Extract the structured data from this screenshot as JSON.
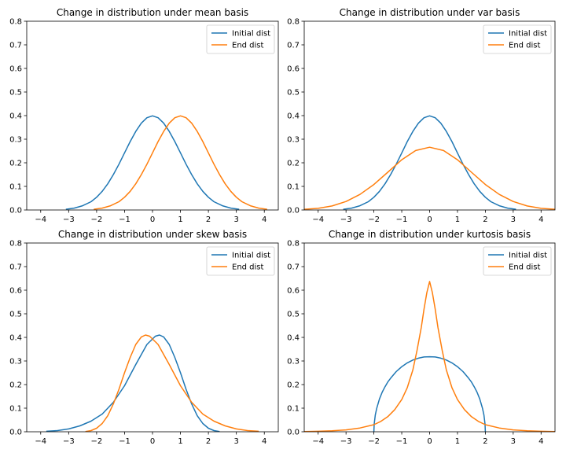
{
  "colors": {
    "initial": "#1f77b4",
    "end": "#ff7f0e"
  },
  "chart_data": [
    {
      "type": "line",
      "title": "Change in distribution under mean basis",
      "xlim": [
        -4.5,
        4.5
      ],
      "ylim": [
        0,
        0.8
      ],
      "xticks": [
        -4,
        -3,
        -2,
        -1,
        0,
        1,
        2,
        3,
        4
      ],
      "xtick_labels": [
        "−4",
        "−3",
        "−2",
        "−1",
        "0",
        "1",
        "2",
        "3",
        "4"
      ],
      "yticks": [
        0,
        0.1,
        0.2,
        0.3,
        0.4,
        0.5,
        0.6,
        0.7,
        0.8
      ],
      "ytick_labels": [
        "0.0",
        "0.1",
        "0.2",
        "0.3",
        "0.4",
        "0.5",
        "0.6",
        "0.7",
        "0.8"
      ],
      "legend": "top-right",
      "series": [
        {
          "name": "Initial dist",
          "x": [
            -3.1,
            -2.8,
            -2.5,
            -2.2,
            -2,
            -1.8,
            -1.6,
            -1.4,
            -1.2,
            -1,
            -0.8,
            -0.6,
            -0.4,
            -0.2,
            0,
            0.2,
            0.4,
            0.6,
            0.8,
            1,
            1.2,
            1.4,
            1.6,
            1.8,
            2,
            2.2,
            2.5,
            2.8,
            3.1
          ],
          "y": [
            0.003,
            0.008,
            0.018,
            0.035,
            0.054,
            0.079,
            0.111,
            0.15,
            0.194,
            0.242,
            0.29,
            0.333,
            0.368,
            0.391,
            0.399,
            0.391,
            0.368,
            0.333,
            0.29,
            0.242,
            0.194,
            0.15,
            0.111,
            0.079,
            0.054,
            0.035,
            0.018,
            0.008,
            0.003
          ]
        },
        {
          "name": "End dist",
          "x": [
            -2.1,
            -1.8,
            -1.5,
            -1.2,
            -1,
            -0.8,
            -0.6,
            -0.4,
            -0.2,
            0,
            0.2,
            0.4,
            0.6,
            0.8,
            1,
            1.2,
            1.4,
            1.6,
            1.8,
            2,
            2.2,
            2.4,
            2.6,
            2.8,
            3,
            3.2,
            3.5,
            3.8,
            4.1
          ],
          "y": [
            0.003,
            0.008,
            0.018,
            0.035,
            0.054,
            0.079,
            0.111,
            0.15,
            0.194,
            0.242,
            0.29,
            0.333,
            0.368,
            0.391,
            0.399,
            0.391,
            0.368,
            0.333,
            0.29,
            0.242,
            0.194,
            0.15,
            0.111,
            0.079,
            0.054,
            0.035,
            0.018,
            0.008,
            0.003
          ]
        }
      ]
    },
    {
      "type": "line",
      "title": "Change in distribution under var basis",
      "xlim": [
        -4.5,
        4.5
      ],
      "ylim": [
        0,
        0.8
      ],
      "xticks": [
        -4,
        -3,
        -2,
        -1,
        0,
        1,
        2,
        3,
        4
      ],
      "xtick_labels": [
        "−4",
        "−3",
        "−2",
        "−1",
        "0",
        "1",
        "2",
        "3",
        "4"
      ],
      "yticks": [
        0,
        0.1,
        0.2,
        0.3,
        0.4,
        0.5,
        0.6,
        0.7,
        0.8
      ],
      "ytick_labels": [
        "0.0",
        "0.1",
        "0.2",
        "0.3",
        "0.4",
        "0.5",
        "0.6",
        "0.7",
        "0.8"
      ],
      "legend": "top-right",
      "series": [
        {
          "name": "Initial dist",
          "x": [
            -3.1,
            -2.8,
            -2.5,
            -2.2,
            -2,
            -1.8,
            -1.6,
            -1.4,
            -1.2,
            -1,
            -0.8,
            -0.6,
            -0.4,
            -0.2,
            0,
            0.2,
            0.4,
            0.6,
            0.8,
            1,
            1.2,
            1.4,
            1.6,
            1.8,
            2,
            2.2,
            2.5,
            2.8,
            3.1
          ],
          "y": [
            0.003,
            0.008,
            0.018,
            0.035,
            0.054,
            0.079,
            0.111,
            0.15,
            0.194,
            0.242,
            0.29,
            0.333,
            0.368,
            0.391,
            0.399,
            0.391,
            0.368,
            0.333,
            0.29,
            0.242,
            0.194,
            0.15,
            0.111,
            0.079,
            0.054,
            0.035,
            0.018,
            0.008,
            0.003
          ]
        },
        {
          "name": "End dist",
          "x": [
            -4.5,
            -4,
            -3.5,
            -3,
            -2.5,
            -2,
            -1.5,
            -1,
            -0.5,
            0,
            0.5,
            1,
            1.5,
            2,
            2.5,
            3,
            3.5,
            4,
            4.5
          ],
          "y": [
            0.003,
            0.007,
            0.017,
            0.036,
            0.066,
            0.108,
            0.16,
            0.213,
            0.252,
            0.266,
            0.252,
            0.213,
            0.16,
            0.108,
            0.066,
            0.036,
            0.017,
            0.007,
            0.003
          ]
        }
      ]
    },
    {
      "type": "line",
      "title": "Change in distribution under skew basis",
      "xlim": [
        -4.5,
        4.5
      ],
      "ylim": [
        0,
        0.8
      ],
      "xticks": [
        -4,
        -3,
        -2,
        -1,
        0,
        1,
        2,
        3,
        4
      ],
      "xtick_labels": [
        "−4",
        "−3",
        "−2",
        "−1",
        "0",
        "1",
        "2",
        "3",
        "4"
      ],
      "yticks": [
        0,
        0.1,
        0.2,
        0.3,
        0.4,
        0.5,
        0.6,
        0.7,
        0.8
      ],
      "ytick_labels": [
        "0.0",
        "0.1",
        "0.2",
        "0.3",
        "0.4",
        "0.5",
        "0.6",
        "0.7",
        "0.8"
      ],
      "legend": "top-right",
      "series": [
        {
          "name": "Initial dist",
          "x": [
            -3.8,
            -3.4,
            -3,
            -2.6,
            -2.2,
            -1.8,
            -1.4,
            -1,
            -0.6,
            -0.2,
            0.1,
            0.25,
            0.4,
            0.6,
            0.8,
            1,
            1.2,
            1.4,
            1.6,
            1.8,
            2,
            2.2,
            2.4
          ],
          "y": [
            0.002,
            0.005,
            0.012,
            0.025,
            0.045,
            0.075,
            0.125,
            0.195,
            0.285,
            0.37,
            0.405,
            0.41,
            0.402,
            0.37,
            0.315,
            0.25,
            0.18,
            0.118,
            0.068,
            0.035,
            0.015,
            0.005,
            0.001
          ]
        },
        {
          "name": "End dist",
          "x": [
            -2.4,
            -2.2,
            -2,
            -1.8,
            -1.6,
            -1.4,
            -1.2,
            -1,
            -0.8,
            -0.6,
            -0.4,
            -0.25,
            -0.1,
            0.2,
            0.6,
            1,
            1.4,
            1.8,
            2.2,
            2.6,
            3,
            3.4,
            3.8
          ],
          "y": [
            0.001,
            0.005,
            0.015,
            0.035,
            0.068,
            0.118,
            0.18,
            0.25,
            0.315,
            0.37,
            0.402,
            0.41,
            0.405,
            0.37,
            0.285,
            0.195,
            0.125,
            0.075,
            0.045,
            0.025,
            0.012,
            0.005,
            0.002
          ]
        }
      ]
    },
    {
      "type": "line",
      "title": "Change in distribution under kurtosis basis",
      "xlim": [
        -4.5,
        4.5
      ],
      "ylim": [
        0,
        0.8
      ],
      "xticks": [
        -4,
        -3,
        -2,
        -1,
        0,
        1,
        2,
        3,
        4
      ],
      "xtick_labels": [
        "−4",
        "−3",
        "−2",
        "−1",
        "0",
        "1",
        "2",
        "3",
        "4"
      ],
      "yticks": [
        0,
        0.1,
        0.2,
        0.3,
        0.4,
        0.5,
        0.6,
        0.7,
        0.8
      ],
      "ytick_labels": [
        "0.0",
        "0.1",
        "0.2",
        "0.3",
        "0.4",
        "0.5",
        "0.6",
        "0.7",
        "0.8"
      ],
      "legend": "top-right",
      "series": [
        {
          "name": "Initial dist",
          "x": [
            -2,
            -1.99,
            -1.95,
            -1.9,
            -1.8,
            -1.7,
            -1.6,
            -1.5,
            -1.4,
            -1.2,
            -1,
            -0.8,
            -0.6,
            -0.4,
            -0.2,
            0,
            0.2,
            0.4,
            0.6,
            0.8,
            1,
            1.2,
            1.4,
            1.5,
            1.6,
            1.7,
            1.8,
            1.9,
            1.95,
            1.99,
            2
          ],
          "y": [
            0,
            0.032,
            0.071,
            0.099,
            0.139,
            0.168,
            0.191,
            0.211,
            0.227,
            0.255,
            0.276,
            0.292,
            0.304,
            0.312,
            0.317,
            0.318,
            0.317,
            0.312,
            0.304,
            0.292,
            0.276,
            0.255,
            0.227,
            0.211,
            0.191,
            0.168,
            0.139,
            0.099,
            0.071,
            0.032,
            0
          ]
        },
        {
          "name": "End dist",
          "x": [
            -4.5,
            -4,
            -3.5,
            -3,
            -2.5,
            -2,
            -1.75,
            -1.5,
            -1.25,
            -1,
            -0.8,
            -0.6,
            -0.45,
            -0.3,
            -0.2,
            -0.1,
            0,
            0.1,
            0.2,
            0.3,
            0.45,
            0.6,
            0.8,
            1,
            1.25,
            1.5,
            1.75,
            2,
            2.5,
            3,
            3.5,
            4,
            4.5
          ],
          "y": [
            0.001,
            0.002,
            0.004,
            0.008,
            0.016,
            0.03,
            0.044,
            0.064,
            0.094,
            0.137,
            0.187,
            0.262,
            0.345,
            0.442,
            0.52,
            0.59,
            0.637,
            0.59,
            0.52,
            0.442,
            0.345,
            0.262,
            0.187,
            0.137,
            0.094,
            0.064,
            0.044,
            0.03,
            0.016,
            0.008,
            0.004,
            0.002,
            0.001
          ]
        }
      ]
    }
  ]
}
